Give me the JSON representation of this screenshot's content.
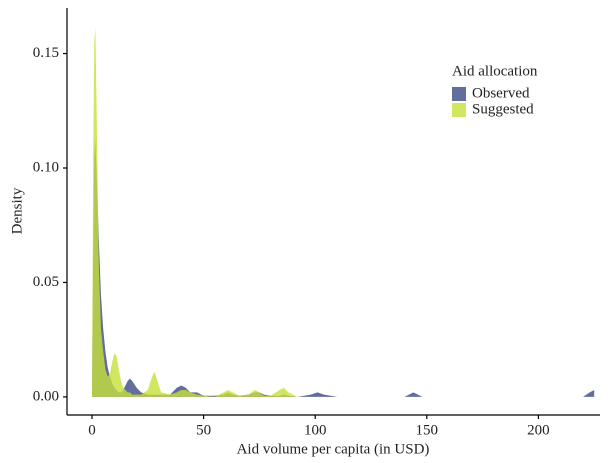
{
  "chart_data": {
    "type": "area",
    "x_label": "Aid volume per capita (in USD)",
    "y_label": "Density",
    "legend_title": "Aid allocation",
    "legend_position": "top-right",
    "x": [
      0,
      0.5,
      1,
      1.5,
      2,
      3,
      4,
      5,
      6,
      7,
      8,
      9,
      10,
      11,
      12,
      13,
      14,
      16,
      17,
      18,
      20,
      22,
      25,
      27,
      28,
      29,
      31,
      35,
      38,
      40,
      42,
      44,
      47,
      50,
      55,
      59,
      61,
      63,
      66,
      70,
      73,
      75,
      77,
      80,
      84,
      86,
      88,
      92,
      98,
      101,
      104,
      110,
      140,
      144,
      148,
      160,
      200,
      220,
      223,
      225
    ],
    "series": [
      {
        "name": "Observed",
        "color": "#3b4a82",
        "values": [
          0,
          0.06,
          0.105,
          0.112,
          0.1,
          0.07,
          0.045,
          0.03,
          0.02,
          0.013,
          0.009,
          0.006,
          0.004,
          0.003,
          0.002,
          0.002,
          0.003,
          0.007,
          0.008,
          0.007,
          0.004,
          0.002,
          0.001,
          0.001,
          0.001,
          0.001,
          0.001,
          0.001,
          0.004,
          0.005,
          0.004,
          0.002,
          0.002,
          0.0005,
          0.0005,
          0.001,
          0.002,
          0.001,
          0.0005,
          0.001,
          0.002,
          0.002,
          0.001,
          0.0005,
          0.0005,
          0.001,
          0.0005,
          0,
          0.001,
          0.002,
          0.001,
          0,
          0,
          0.002,
          0,
          0,
          0,
          0,
          0.002,
          0.003
        ]
      },
      {
        "name": "Suggested",
        "color": "#c6e03a",
        "values": [
          0,
          0.1,
          0.155,
          0.161,
          0.13,
          0.06,
          0.03,
          0.02,
          0.012,
          0.009,
          0.01,
          0.015,
          0.019,
          0.018,
          0.012,
          0.007,
          0.004,
          0.002,
          0.002,
          0.001,
          0.001,
          0.001,
          0.003,
          0.009,
          0.011,
          0.008,
          0.002,
          0.001,
          0.002,
          0.003,
          0.003,
          0.002,
          0.001,
          0.0005,
          0,
          0.002,
          0.003,
          0.002,
          0.0005,
          0.001,
          0.003,
          0.002,
          0.0005,
          0.0005,
          0.003,
          0.004,
          0.002,
          0,
          0,
          0,
          0,
          0,
          0,
          0,
          0,
          0,
          0,
          0,
          0,
          0
        ]
      }
    ],
    "xlim": [
      -11.2,
      227.6
    ],
    "xticks": [
      0,
      50,
      100,
      150,
      200
    ],
    "ylim": [
      -0.0079,
      0.1699
    ],
    "yticks": [
      {
        "value": 0,
        "label": "0.00"
      },
      {
        "value": 0.05,
        "label": "0.05"
      },
      {
        "value": 0.1,
        "label": "0.10"
      },
      {
        "value": 0.15,
        "label": "0.15"
      }
    ],
    "grid": false
  }
}
